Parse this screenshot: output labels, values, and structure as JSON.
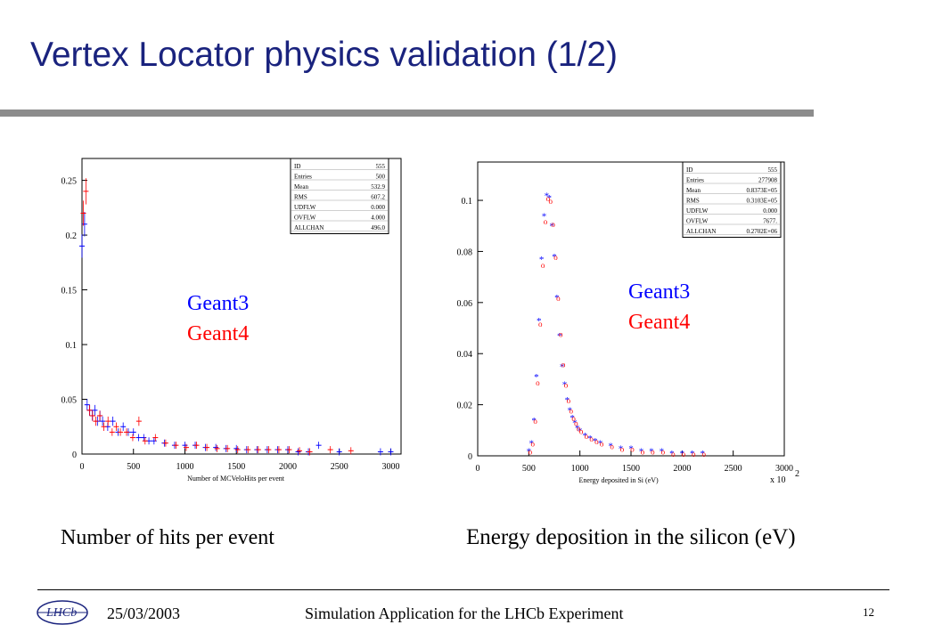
{
  "slide": {
    "title": "Vertex Locator physics validation (1/2)",
    "caption_left": "Number of hits per event",
    "caption_right": "Energy deposition in the silicon (eV)"
  },
  "footer": {
    "date": "25/03/2003",
    "center": "Simulation Application for the LHCb Experiment",
    "page": "12",
    "logo_text": "LHCb"
  },
  "colors": {
    "title": "#1a237e",
    "geant3": "#0000ff",
    "geant4": "#ff0000"
  },
  "chart_data": [
    {
      "type": "scatter",
      "xlabel": "Number of MCVeloHits per event",
      "ylabel": "",
      "xlim": [
        0,
        3100
      ],
      "ylim": [
        0,
        0.27
      ],
      "xticks": [
        0,
        500,
        1000,
        1500,
        2000,
        2500,
        3000
      ],
      "yticks": [
        0,
        0.05,
        0.1,
        0.15,
        0.2,
        0.25
      ],
      "ytick_labels": [
        "0",
        "0.05",
        "0.1",
        "0.15",
        "0.2",
        "0.25"
      ],
      "legend": [
        "Geant3",
        "Geant4"
      ],
      "stats": [
        {
          "label": "ID",
          "value": "555"
        },
        {
          "label": "Entries",
          "value": "500"
        },
        {
          "label": "Mean",
          "value": "532.9"
        },
        {
          "label": "RMS",
          "value": "607.2"
        },
        {
          "label": "UDFLW",
          "value": "0.000"
        },
        {
          "label": "OVFLW",
          "value": "4.000"
        },
        {
          "label": "ALLCHAN",
          "value": "496.0"
        }
      ],
      "series": [
        {
          "name": "Geant3",
          "x": [
            0,
            25,
            50,
            75,
            100,
            125,
            150,
            175,
            200,
            250,
            300,
            350,
            400,
            450,
            500,
            550,
            600,
            650,
            700,
            800,
            900,
            1000,
            1100,
            1200,
            1300,
            1400,
            1500,
            1600,
            1700,
            1800,
            1900,
            2000,
            2100,
            2200,
            2300,
            2500,
            2900,
            3000
          ],
          "y": [
            0.19,
            0.21,
            0.045,
            0.04,
            0.035,
            0.04,
            0.03,
            0.035,
            0.03,
            0.025,
            0.03,
            0.02,
            0.025,
            0.02,
            0.02,
            0.015,
            0.015,
            0.012,
            0.012,
            0.01,
            0.008,
            0.008,
            0.008,
            0.006,
            0.006,
            0.005,
            0.005,
            0.004,
            0.004,
            0.004,
            0.004,
            0.004,
            0.002,
            0.002,
            0.008,
            0.002,
            0.002,
            0.002
          ]
        },
        {
          "name": "Geant4",
          "x": [
            0,
            25,
            60,
            90,
            120,
            160,
            200,
            240,
            280,
            320,
            360,
            420,
            480,
            540,
            600,
            700,
            800,
            900,
            1000,
            1100,
            1200,
            1300,
            1400,
            1500,
            1600,
            1700,
            1800,
            1900,
            2000,
            2100,
            2200,
            2400,
            2600
          ],
          "y": [
            0.22,
            0.24,
            0.04,
            0.035,
            0.03,
            0.035,
            0.025,
            0.03,
            0.02,
            0.025,
            0.02,
            0.02,
            0.015,
            0.03,
            0.012,
            0.015,
            0.01,
            0.008,
            0.006,
            0.008,
            0.006,
            0.005,
            0.005,
            0.004,
            0.004,
            0.004,
            0.004,
            0.004,
            0.004,
            0.003,
            0.002,
            0.004,
            0.003
          ]
        }
      ]
    },
    {
      "type": "scatter",
      "xlabel": "Energy deposited in Si (eV)",
      "x_multiplier": "x 10",
      "x_multiplier_exp": "2",
      "ylabel": "",
      "xlim": [
        0,
        3000
      ],
      "ylim": [
        0,
        0.115
      ],
      "xticks": [
        0,
        500,
        1000,
        1500,
        2000,
        2500,
        3000
      ],
      "yticks": [
        0,
        0.02,
        0.04,
        0.06,
        0.08,
        0.1
      ],
      "ytick_labels": [
        "0",
        "0.02",
        "0.04",
        "0.06",
        "0.08",
        "0.1"
      ],
      "legend": [
        "Geant3",
        "Geant4"
      ],
      "stats": [
        {
          "label": "ID",
          "value": "555"
        },
        {
          "label": "Entries",
          "value": "277908"
        },
        {
          "label": "Mean",
          "value": "0.8373E+05"
        },
        {
          "label": "RMS",
          "value": "0.3103E+05"
        },
        {
          "label": "UDFLW",
          "value": "0.000"
        },
        {
          "label": "OVFLW",
          "value": "7677."
        },
        {
          "label": "ALLCHAN",
          "value": "0.2702E+06"
        }
      ],
      "series": [
        {
          "name": "Geant3",
          "x": [
            500,
            525,
            550,
            575,
            600,
            625,
            650,
            675,
            700,
            725,
            750,
            775,
            800,
            825,
            850,
            875,
            900,
            925,
            950,
            975,
            1000,
            1050,
            1100,
            1150,
            1200,
            1300,
            1400,
            1500,
            1600,
            1700,
            1800,
            1900,
            2000,
            2100,
            2200
          ],
          "y": [
            0.002,
            0.005,
            0.014,
            0.031,
            0.053,
            0.077,
            0.094,
            0.102,
            0.101,
            0.09,
            0.078,
            0.062,
            0.047,
            0.035,
            0.028,
            0.022,
            0.018,
            0.015,
            0.013,
            0.011,
            0.01,
            0.008,
            0.007,
            0.006,
            0.005,
            0.004,
            0.003,
            0.003,
            0.002,
            0.002,
            0.002,
            0.001,
            0.001,
            0.001,
            0.001
          ]
        },
        {
          "name": "Geant4",
          "x": [
            500,
            525,
            550,
            575,
            600,
            625,
            650,
            675,
            700,
            725,
            750,
            775,
            800,
            825,
            850,
            875,
            900,
            925,
            950,
            975,
            1000,
            1050,
            1100,
            1150,
            1200,
            1300,
            1400,
            1500,
            1600,
            1700,
            1800,
            1900,
            2000,
            2100,
            2200
          ],
          "y": [
            0.002,
            0.005,
            0.014,
            0.029,
            0.052,
            0.075,
            0.092,
            0.101,
            0.1,
            0.091,
            0.078,
            0.062,
            0.048,
            0.036,
            0.028,
            0.022,
            0.018,
            0.015,
            0.013,
            0.011,
            0.01,
            0.008,
            0.007,
            0.006,
            0.005,
            0.004,
            0.003,
            0.003,
            0.002,
            0.002,
            0.002,
            0.001,
            0.001,
            0.001,
            0.001
          ]
        }
      ]
    }
  ]
}
